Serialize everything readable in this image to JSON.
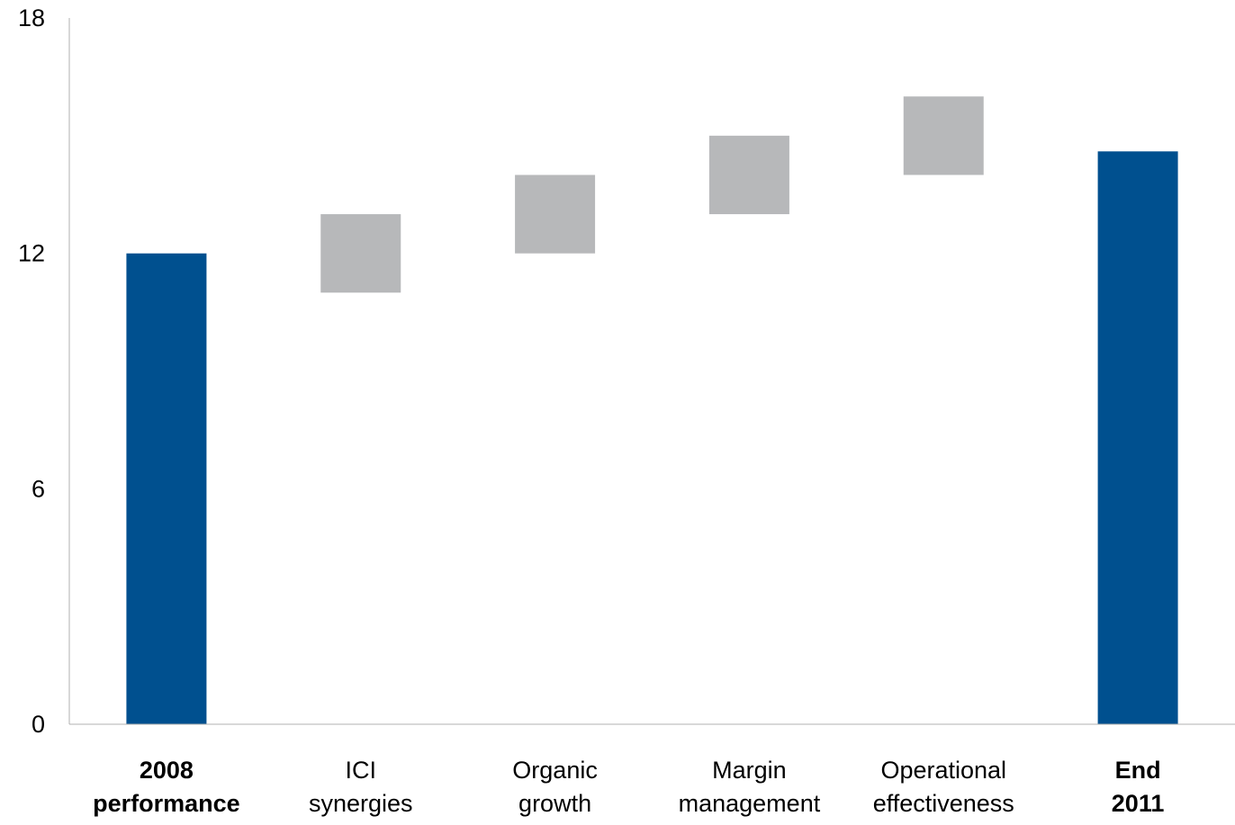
{
  "chart_data": {
    "type": "bar",
    "subtype": "waterfall",
    "categories": [
      [
        "2008",
        "performance"
      ],
      [
        "ICI",
        "synergies"
      ],
      [
        "Organic",
        "growth"
      ],
      [
        "Margin",
        "management"
      ],
      [
        "Operational",
        "effectiveness"
      ],
      [
        "End",
        "2011"
      ]
    ],
    "category_bold": [
      true,
      false,
      false,
      false,
      false,
      true
    ],
    "bars": [
      {
        "kind": "total",
        "start": 0,
        "end": 12.0
      },
      {
        "kind": "step",
        "start": 11.0,
        "end": 13.0
      },
      {
        "kind": "step",
        "start": 12.0,
        "end": 14.0
      },
      {
        "kind": "step",
        "start": 13.0,
        "end": 15.0
      },
      {
        "kind": "step",
        "start": 14.0,
        "end": 16.0
      },
      {
        "kind": "total",
        "start": 0,
        "end": 14.6
      }
    ],
    "ylim": [
      0,
      18
    ],
    "yticks": [
      0,
      6,
      12,
      18
    ],
    "title": "",
    "xlabel": "",
    "ylabel": "",
    "grid": false,
    "legend": "none",
    "colors": {
      "total": "#00508f",
      "step": "#b7b8ba",
      "axis": "#b0b0b0",
      "text": "#000000"
    }
  }
}
